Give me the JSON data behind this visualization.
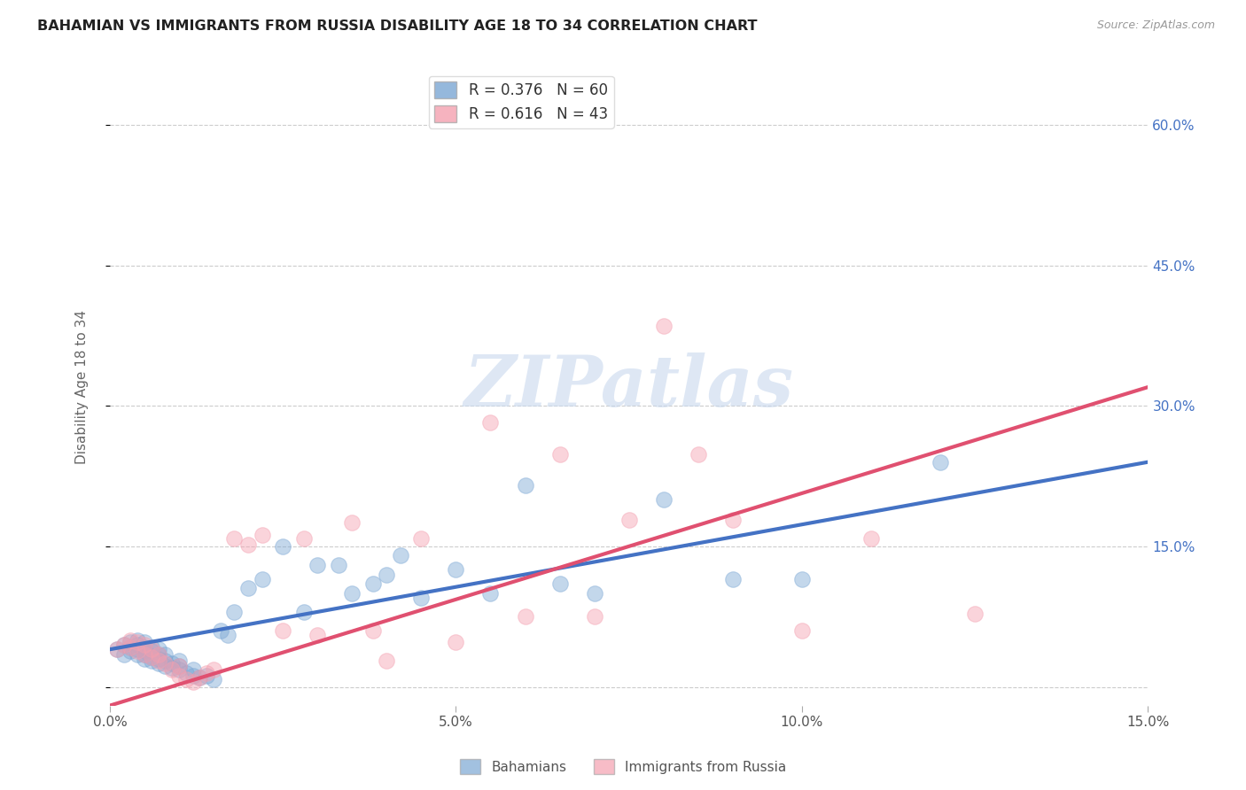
{
  "title": "BAHAMIAN VS IMMIGRANTS FROM RUSSIA DISABILITY AGE 18 TO 34 CORRELATION CHART",
  "source": "Source: ZipAtlas.com",
  "ylabel": "Disability Age 18 to 34",
  "xlim": [
    0.0,
    0.15
  ],
  "ylim": [
    -0.02,
    0.66
  ],
  "xticks": [
    0.0,
    0.05,
    0.1,
    0.15
  ],
  "xtick_labels": [
    "0.0%",
    "5.0%",
    "10.0%",
    "15.0%"
  ],
  "yticks": [
    0.0,
    0.15,
    0.3,
    0.45,
    0.6
  ],
  "ytick_labels_right": [
    "",
    "15.0%",
    "30.0%",
    "45.0%",
    "60.0%"
  ],
  "grid_color": "#cccccc",
  "background_color": "#ffffff",
  "blue_color": "#7ba7d4",
  "pink_color": "#f4a0b0",
  "blue_line_color": "#4472c4",
  "pink_line_color": "#e05070",
  "R_blue": 0.376,
  "N_blue": 60,
  "R_pink": 0.616,
  "N_pink": 43,
  "blue_scatter_x": [
    0.001,
    0.002,
    0.002,
    0.003,
    0.003,
    0.003,
    0.004,
    0.004,
    0.004,
    0.004,
    0.005,
    0.005,
    0.005,
    0.005,
    0.005,
    0.006,
    0.006,
    0.006,
    0.006,
    0.007,
    0.007,
    0.007,
    0.007,
    0.008,
    0.008,
    0.008,
    0.009,
    0.009,
    0.01,
    0.01,
    0.01,
    0.011,
    0.012,
    0.012,
    0.013,
    0.014,
    0.015,
    0.016,
    0.017,
    0.018,
    0.02,
    0.022,
    0.025,
    0.028,
    0.03,
    0.033,
    0.035,
    0.038,
    0.04,
    0.042,
    0.045,
    0.05,
    0.055,
    0.06,
    0.065,
    0.07,
    0.08,
    0.09,
    0.1,
    0.12
  ],
  "blue_scatter_y": [
    0.04,
    0.035,
    0.045,
    0.038,
    0.042,
    0.048,
    0.035,
    0.04,
    0.045,
    0.05,
    0.03,
    0.035,
    0.038,
    0.042,
    0.048,
    0.028,
    0.032,
    0.038,
    0.042,
    0.025,
    0.03,
    0.035,
    0.04,
    0.022,
    0.028,
    0.035,
    0.02,
    0.025,
    0.018,
    0.022,
    0.028,
    0.015,
    0.012,
    0.018,
    0.01,
    0.012,
    0.008,
    0.06,
    0.055,
    0.08,
    0.105,
    0.115,
    0.15,
    0.08,
    0.13,
    0.13,
    0.1,
    0.11,
    0.12,
    0.14,
    0.095,
    0.125,
    0.1,
    0.215,
    0.11,
    0.1,
    0.2,
    0.115,
    0.115,
    0.24
  ],
  "pink_scatter_x": [
    0.001,
    0.002,
    0.003,
    0.003,
    0.004,
    0.004,
    0.005,
    0.005,
    0.006,
    0.006,
    0.007,
    0.007,
    0.008,
    0.009,
    0.01,
    0.01,
    0.011,
    0.012,
    0.013,
    0.014,
    0.015,
    0.018,
    0.02,
    0.022,
    0.025,
    0.028,
    0.03,
    0.035,
    0.038,
    0.04,
    0.045,
    0.05,
    0.055,
    0.06,
    0.065,
    0.07,
    0.075,
    0.08,
    0.085,
    0.09,
    0.1,
    0.11,
    0.125
  ],
  "pink_scatter_y": [
    0.04,
    0.045,
    0.042,
    0.05,
    0.038,
    0.048,
    0.035,
    0.045,
    0.032,
    0.04,
    0.028,
    0.035,
    0.025,
    0.018,
    0.012,
    0.022,
    0.008,
    0.005,
    0.01,
    0.015,
    0.018,
    0.158,
    0.152,
    0.162,
    0.06,
    0.158,
    0.055,
    0.175,
    0.06,
    0.028,
    0.158,
    0.048,
    0.282,
    0.075,
    0.248,
    0.075,
    0.178,
    0.385,
    0.248,
    0.178,
    0.06,
    0.158,
    0.078
  ],
  "blue_trend": [
    0.04,
    0.24
  ],
  "pink_trend": [
    -0.02,
    0.32
  ],
  "watermark": "ZIPatlas",
  "watermark_color": "#c8d8ee"
}
